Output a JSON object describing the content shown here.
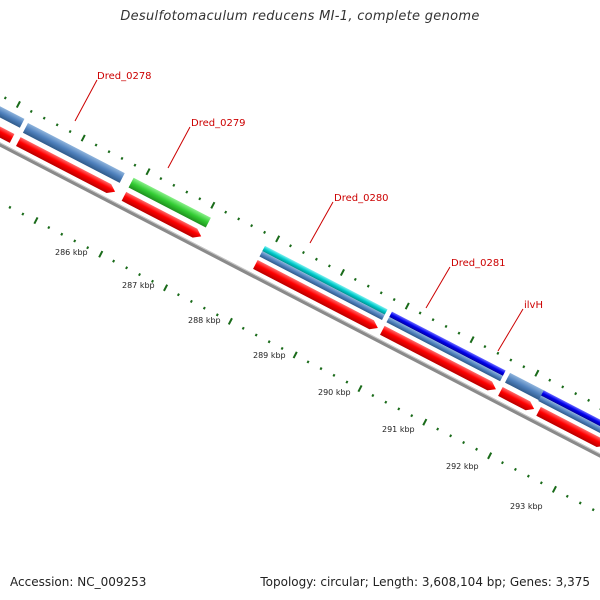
{
  "title": "Desulfotomaculum reducens MI-1, complete genome",
  "footer": {
    "accession": "Accession: NC_009253",
    "summary": "Topology: circular; Length: 3,608,104 bp; Genes: 3,375"
  },
  "gene_labels": [
    "Dred_0278",
    "Dred_0279",
    "Dred_0280",
    "Dred_0281",
    "ilvH"
  ],
  "scale_labels": [
    "286 kbp",
    "287 kbp",
    "288 kbp",
    "289 kbp",
    "290 kbp",
    "291 kbp",
    "292 kbp",
    "293 kbp"
  ],
  "colors": {
    "cds_forward": "#ff0000",
    "steelblue": "#4f81bd",
    "green": "#33cc33",
    "cyan": "#00cccc",
    "blue": "#0000ee",
    "backbone": "#808080",
    "tick": "#1a6b1a",
    "label": "#cc0000"
  }
}
